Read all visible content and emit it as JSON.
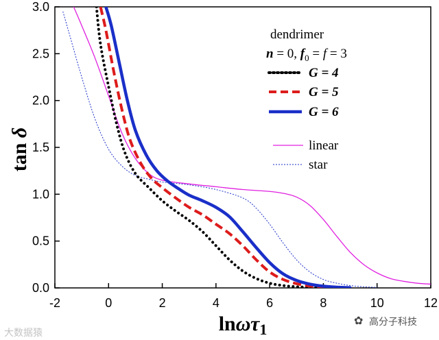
{
  "chart_data": {
    "type": "line",
    "xlabel": "ln ωτ1",
    "ylabel": "tan δ",
    "xlim": [
      -2,
      12
    ],
    "ylim": [
      0,
      3
    ],
    "x_ticks": [
      "-2",
      "0",
      "2",
      "4",
      "6",
      "8",
      "10",
      "12"
    ],
    "y_ticks": [
      "0.0",
      "0.5",
      "1.0",
      "1.5",
      "2.0",
      "2.5",
      "3.0"
    ],
    "legend": {
      "title": "dendrimer",
      "subtitle": "n = 0,  f0 = f = 3",
      "entries": [
        "G = 4",
        "G = 5",
        "G = 6",
        "linear",
        "star"
      ]
    },
    "series": [
      {
        "name": "G = 4",
        "color": "#000000",
        "style": "dotted",
        "x": [
          -0.45,
          -0.3,
          0,
          0.3,
          0.6,
          1,
          1.5,
          2,
          2.5,
          3,
          3.5,
          4,
          4.5,
          5,
          5.5,
          6,
          6.5,
          7,
          7.5,
          8
        ],
        "y": [
          3.0,
          2.6,
          2.15,
          1.75,
          1.45,
          1.22,
          1.07,
          0.93,
          0.82,
          0.72,
          0.6,
          0.45,
          0.3,
          0.18,
          0.1,
          0.05,
          0.025,
          0.012,
          0.006,
          0.003
        ]
      },
      {
        "name": "G = 5",
        "color": "#dd1c1c",
        "style": "dashed",
        "x": [
          -0.3,
          -0.1,
          0.2,
          0.5,
          0.8,
          1.2,
          1.6,
          2,
          2.5,
          3,
          3.5,
          4,
          4.5,
          5,
          5.5,
          6,
          6.5,
          7,
          7.5,
          8,
          8.5
        ],
        "y": [
          3.0,
          2.75,
          2.3,
          1.9,
          1.58,
          1.33,
          1.17,
          1.07,
          0.96,
          0.86,
          0.78,
          0.68,
          0.58,
          0.45,
          0.3,
          0.17,
          0.09,
          0.045,
          0.02,
          0.008,
          0.003
        ]
      },
      {
        "name": "G = 6",
        "color": "#1a2fc8",
        "style": "solid-thick",
        "x": [
          -0.1,
          0.1,
          0.4,
          0.7,
          1,
          1.4,
          1.8,
          2.2,
          2.6,
          3,
          3.5,
          4,
          4.5,
          5,
          5.5,
          6,
          6.5,
          7,
          7.5,
          8,
          8.5,
          9
        ],
        "y": [
          3.0,
          2.8,
          2.4,
          2.0,
          1.68,
          1.42,
          1.25,
          1.14,
          1.06,
          0.99,
          0.93,
          0.86,
          0.76,
          0.6,
          0.43,
          0.27,
          0.15,
          0.08,
          0.04,
          0.018,
          0.007,
          0.002
        ]
      },
      {
        "name": "linear",
        "color": "#e020e0",
        "style": "solid-thin",
        "x": [
          -1.3,
          -1,
          -0.5,
          0,
          0.5,
          1,
          1.5,
          2,
          3,
          4,
          5,
          6,
          6.5,
          7,
          7.5,
          8,
          8.5,
          9,
          9.5,
          10,
          10.5,
          11,
          11.5,
          12
        ],
        "y": [
          3.0,
          2.8,
          2.45,
          2.05,
          1.65,
          1.38,
          1.22,
          1.15,
          1.11,
          1.08,
          1.05,
          1.03,
          1.01,
          0.97,
          0.88,
          0.73,
          0.55,
          0.38,
          0.25,
          0.16,
          0.1,
          0.07,
          0.05,
          0.04
        ]
      },
      {
        "name": "star",
        "color": "#1a2fc8",
        "style": "dotted-thin",
        "x": [
          -1.7,
          -1.5,
          -1,
          -0.5,
          0,
          0.5,
          1,
          1.5,
          2,
          3,
          4,
          5,
          5.5,
          6,
          6.5,
          7,
          7.5,
          8,
          8.5,
          9,
          9.5,
          10
        ],
        "y": [
          2.95,
          2.75,
          2.25,
          1.8,
          1.48,
          1.3,
          1.2,
          1.16,
          1.13,
          1.1,
          1.05,
          0.96,
          0.85,
          0.68,
          0.48,
          0.3,
          0.17,
          0.09,
          0.05,
          0.025,
          0.012,
          0.005
        ]
      }
    ]
  },
  "watermark_left": "大数据猿",
  "watermark_right": "高分子科技"
}
